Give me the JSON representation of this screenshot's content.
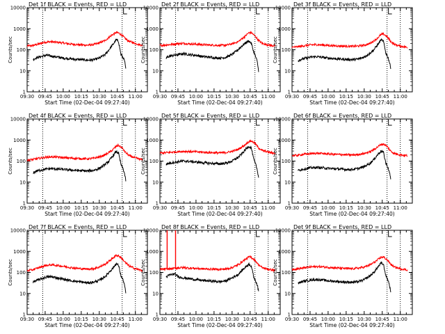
{
  "chart_data": {
    "type": "line",
    "y_scale": "log",
    "ylim": [
      1,
      10000
    ],
    "xlim": [
      "09:30",
      "11:10"
    ],
    "ylabel": "Counts/sec",
    "xlabel": "Start Time (02-Dec-04 09:27:40)",
    "x_tick_labels": [
      "09:30",
      "09:45",
      "10:00",
      "10:15",
      "10:30",
      "10:45",
      "11:00"
    ],
    "y_tick_labels": [
      "1",
      "10",
      "100",
      "1000",
      "10000"
    ],
    "series_colors": {
      "events": "#000000",
      "lld": "#ff0000"
    },
    "panels": [
      {
        "title": "Det 1f BLACK = Events, RED = LLD",
        "vlines": [
          "09:43",
          "10:49",
          "11:00"
        ],
        "lld": {
          "x": [
            "09:30",
            "09:35",
            "09:40",
            "09:45",
            "09:50",
            "09:55",
            "10:00",
            "10:05",
            "10:10",
            "10:15",
            "10:20",
            "10:25",
            "10:30",
            "10:35",
            "10:40",
            "10:44",
            "10:46",
            "10:49",
            "10:52",
            "10:55",
            "11:00",
            "11:06"
          ],
          "y": [
            150,
            160,
            190,
            230,
            240,
            225,
            210,
            190,
            180,
            170,
            165,
            175,
            210,
            280,
            480,
            650,
            630,
            480,
            320,
            250,
            200,
            160
          ]
        },
        "events": {
          "x": [
            "09:35",
            "09:38",
            "09:42",
            "09:46",
            "09:50",
            "09:55",
            "10:00",
            "10:05",
            "10:10",
            "10:15",
            "10:20",
            "10:25",
            "10:30",
            "10:35",
            "10:38",
            "10:42",
            "10:44",
            "10:46",
            "10:48",
            "10:50",
            "10:51",
            "10:52"
          ],
          "y": [
            35,
            42,
            48,
            55,
            50,
            45,
            40,
            38,
            35,
            34,
            32,
            33,
            40,
            60,
            100,
            200,
            300,
            250,
            60,
            40,
            30,
            12
          ]
        }
      },
      {
        "title": "Det 2f BLACK = Events, RED = LLD",
        "vlines": [
          "09:43",
          "10:49",
          "11:00"
        ],
        "lld": {
          "x": [
            "09:30",
            "09:35",
            "09:40",
            "09:45",
            "09:50",
            "09:55",
            "10:00",
            "10:05",
            "10:10",
            "10:15",
            "10:20",
            "10:25",
            "10:30",
            "10:35",
            "10:40",
            "10:44",
            "10:46",
            "10:49",
            "10:52",
            "10:55",
            "11:00",
            "11:06"
          ],
          "y": [
            160,
            170,
            180,
            195,
            200,
            190,
            185,
            175,
            170,
            165,
            160,
            165,
            190,
            240,
            400,
            650,
            650,
            450,
            280,
            200,
            170,
            150
          ]
        },
        "events": {
          "x": [
            "09:35",
            "09:38",
            "09:42",
            "09:46",
            "09:50",
            "09:55",
            "10:00",
            "10:05",
            "10:10",
            "10:15",
            "10:20",
            "10:25",
            "10:30",
            "10:35",
            "10:38",
            "10:42",
            "10:44",
            "10:46",
            "10:48",
            "10:50",
            "10:51",
            "10:52"
          ],
          "y": [
            40,
            50,
            55,
            60,
            65,
            58,
            55,
            48,
            45,
            42,
            40,
            44,
            60,
            100,
            150,
            230,
            260,
            200,
            80,
            40,
            25,
            10
          ]
        }
      },
      {
        "title": "Det 3f BLACK = Events, RED = LLD",
        "vlines": [
          "09:43",
          "10:49",
          "11:00"
        ],
        "lld": {
          "x": [
            "09:30",
            "09:35",
            "09:40",
            "09:45",
            "09:50",
            "09:55",
            "10:00",
            "10:05",
            "10:10",
            "10:15",
            "10:20",
            "10:25",
            "10:30",
            "10:35",
            "10:40",
            "10:44",
            "10:46",
            "10:49",
            "10:52",
            "10:55",
            "11:00",
            "11:06"
          ],
          "y": [
            130,
            140,
            155,
            170,
            175,
            170,
            160,
            155,
            150,
            148,
            145,
            150,
            165,
            200,
            320,
            520,
            560,
            420,
            250,
            180,
            150,
            130
          ]
        },
        "events": {
          "x": [
            "09:35",
            "09:38",
            "09:42",
            "09:46",
            "09:50",
            "09:55",
            "10:00",
            "10:05",
            "10:10",
            "10:15",
            "10:20",
            "10:25",
            "10:30",
            "10:35",
            "10:38",
            "10:42",
            "10:44",
            "10:46",
            "10:48",
            "10:50",
            "10:51",
            "10:52"
          ],
          "y": [
            30,
            36,
            40,
            45,
            47,
            44,
            40,
            38,
            36,
            35,
            34,
            36,
            45,
            70,
            100,
            200,
            300,
            250,
            70,
            40,
            25,
            14
          ]
        }
      },
      {
        "title": "Det 4f BLACK = Events, RED = LLD",
        "vlines": [
          "09:43",
          "10:49",
          "11:00"
        ],
        "lld": {
          "x": [
            "09:30",
            "09:35",
            "09:40",
            "09:45",
            "09:50",
            "09:55",
            "10:00",
            "10:05",
            "10:10",
            "10:15",
            "10:20",
            "10:25",
            "10:30",
            "10:35",
            "10:40",
            "10:44",
            "10:46",
            "10:49",
            "10:52",
            "10:55",
            "11:00",
            "11:06"
          ],
          "y": [
            110,
            120,
            135,
            150,
            160,
            155,
            145,
            140,
            135,
            130,
            128,
            135,
            155,
            200,
            300,
            500,
            560,
            420,
            250,
            180,
            140,
            115
          ]
        },
        "events": {
          "x": [
            "09:35",
            "09:38",
            "09:42",
            "09:46",
            "09:50",
            "09:55",
            "10:00",
            "10:05",
            "10:10",
            "10:15",
            "10:20",
            "10:25",
            "10:30",
            "10:35",
            "10:38",
            "10:42",
            "10:44",
            "10:46",
            "10:48",
            "10:50",
            "10:51",
            "10:52"
          ],
          "y": [
            28,
            34,
            38,
            42,
            44,
            42,
            40,
            38,
            36,
            35,
            34,
            36,
            45,
            70,
            100,
            200,
            280,
            240,
            70,
            40,
            25,
            12
          ]
        }
      },
      {
        "title": "Det 5f BLACK = Events, RED = LLD",
        "vlines": [
          "09:43",
          "10:49",
          "11:00"
        ],
        "lld": {
          "x": [
            "09:30",
            "09:35",
            "09:40",
            "09:45",
            "09:50",
            "09:55",
            "10:00",
            "10:05",
            "10:10",
            "10:15",
            "10:20",
            "10:25",
            "10:30",
            "10:35",
            "10:40",
            "10:44",
            "10:46",
            "10:49",
            "10:52",
            "10:55",
            "11:00",
            "11:06"
          ],
          "y": [
            240,
            250,
            265,
            280,
            290,
            285,
            275,
            265,
            255,
            250,
            245,
            255,
            290,
            360,
            550,
            850,
            900,
            700,
            420,
            320,
            270,
            230
          ]
        },
        "events": {
          "x": [
            "09:35",
            "09:38",
            "09:42",
            "09:46",
            "09:50",
            "09:55",
            "10:00",
            "10:05",
            "10:10",
            "10:15",
            "10:20",
            "10:25",
            "10:30",
            "10:35",
            "10:38",
            "10:42",
            "10:44",
            "10:46",
            "10:48",
            "10:50",
            "10:51",
            "10:52"
          ],
          "y": [
            70,
            80,
            88,
            95,
            100,
            96,
            90,
            85,
            80,
            76,
            74,
            80,
            100,
            150,
            220,
            400,
            500,
            420,
            120,
            60,
            35,
            18
          ]
        }
      },
      {
        "title": "Det 6f BLACK = Events, RED = LLD",
        "vlines": [
          "09:43",
          "10:49",
          "11:00"
        ],
        "lld": {
          "x": [
            "09:30",
            "09:35",
            "09:40",
            "09:45",
            "09:50",
            "09:55",
            "10:00",
            "10:05",
            "10:10",
            "10:15",
            "10:20",
            "10:25",
            "10:30",
            "10:35",
            "10:40",
            "10:44",
            "10:46",
            "10:49",
            "10:52",
            "10:55",
            "11:00",
            "11:06"
          ],
          "y": [
            180,
            190,
            210,
            225,
            235,
            230,
            220,
            210,
            205,
            200,
            195,
            205,
            230,
            280,
            420,
            620,
            650,
            500,
            300,
            230,
            200,
            180
          ]
        },
        "events": {
          "x": [
            "09:35",
            "09:38",
            "09:42",
            "09:46",
            "09:50",
            "09:55",
            "10:00",
            "10:05",
            "10:10",
            "10:15",
            "10:20",
            "10:25",
            "10:30",
            "10:35",
            "10:38",
            "10:42",
            "10:44",
            "10:46",
            "10:48",
            "10:50",
            "10:51",
            "10:52"
          ],
          "y": [
            35,
            40,
            44,
            48,
            50,
            48,
            45,
            43,
            42,
            40,
            40,
            44,
            55,
            80,
            120,
            230,
            300,
            260,
            80,
            45,
            28,
            15
          ]
        }
      },
      {
        "title": "Det 7f BLACK = Events, RED = LLD",
        "vlines": [
          "09:43",
          "10:49",
          "11:00"
        ],
        "lld": {
          "x": [
            "09:30",
            "09:35",
            "09:40",
            "09:45",
            "09:50",
            "09:55",
            "10:00",
            "10:05",
            "10:10",
            "10:15",
            "10:20",
            "10:25",
            "10:30",
            "10:35",
            "10:40",
            "10:44",
            "10:46",
            "10:49",
            "10:52",
            "10:55",
            "11:00",
            "11:06"
          ],
          "y": [
            120,
            135,
            170,
            210,
            230,
            215,
            195,
            175,
            160,
            150,
            145,
            150,
            180,
            250,
            420,
            650,
            620,
            450,
            280,
            200,
            150,
            120
          ]
        },
        "events": {
          "x": [
            "09:35",
            "09:38",
            "09:42",
            "09:46",
            "09:50",
            "09:55",
            "10:00",
            "10:05",
            "10:10",
            "10:15",
            "10:20",
            "10:25",
            "10:30",
            "10:35",
            "10:38",
            "10:42",
            "10:44",
            "10:46",
            "10:48",
            "10:50",
            "10:51",
            "10:52"
          ],
          "y": [
            35,
            42,
            50,
            60,
            62,
            55,
            48,
            42,
            38,
            35,
            32,
            34,
            42,
            65,
            100,
            180,
            260,
            220,
            70,
            40,
            25,
            10
          ]
        }
      },
      {
        "title": "Det 8f BLACK = Events, RED = LLD",
        "vlines": [
          "09:43",
          "10:49",
          "11:00"
        ],
        "spike": {
          "x0": "09:36",
          "x1": "09:43",
          "y": 10000
        },
        "lld": {
          "x": [
            "09:30",
            "09:35",
            "09:40",
            "09:45",
            "09:50",
            "09:55",
            "10:00",
            "10:05",
            "10:10",
            "10:15",
            "10:20",
            "10:25",
            "10:30",
            "10:35",
            "10:40",
            "10:44",
            "10:46",
            "10:49",
            "10:52",
            "10:55",
            "11:00",
            "11:06"
          ],
          "y": [
            140,
            145,
            150,
            165,
            170,
            160,
            155,
            148,
            145,
            142,
            140,
            145,
            170,
            230,
            380,
            550,
            520,
            380,
            230,
            170,
            140,
            125
          ]
        },
        "events": {
          "x": [
            "09:35",
            "09:38",
            "09:42",
            "09:46",
            "09:50",
            "09:55",
            "10:00",
            "10:05",
            "10:10",
            "10:15",
            "10:20",
            "10:25",
            "10:30",
            "10:35",
            "10:38",
            "10:42",
            "10:44",
            "10:46",
            "10:48",
            "10:50",
            "10:51",
            "10:52"
          ],
          "y": [
            60,
            75,
            85,
            60,
            55,
            50,
            45,
            42,
            40,
            38,
            36,
            40,
            55,
            80,
            120,
            200,
            250,
            200,
            60,
            35,
            25,
            12
          ]
        }
      },
      {
        "title": "Det 9f BLACK = Events, RED = LLD",
        "vlines": [
          "09:43",
          "10:49",
          "11:00"
        ],
        "lld": {
          "x": [
            "09:30",
            "09:35",
            "09:40",
            "09:45",
            "09:50",
            "09:55",
            "10:00",
            "10:05",
            "10:10",
            "10:15",
            "10:20",
            "10:25",
            "10:30",
            "10:35",
            "10:40",
            "10:44",
            "10:46",
            "10:49",
            "10:52",
            "10:55",
            "11:00",
            "11:06"
          ],
          "y": [
            140,
            150,
            165,
            180,
            190,
            185,
            175,
            165,
            160,
            155,
            150,
            160,
            180,
            230,
            350,
            520,
            540,
            400,
            250,
            180,
            150,
            130
          ]
        },
        "events": {
          "x": [
            "09:35",
            "09:38",
            "09:42",
            "09:46",
            "09:50",
            "09:55",
            "10:00",
            "10:05",
            "10:10",
            "10:15",
            "10:20",
            "10:25",
            "10:30",
            "10:35",
            "10:38",
            "10:42",
            "10:44",
            "10:46",
            "10:48",
            "10:50",
            "10:51",
            "10:52"
          ],
          "y": [
            30,
            36,
            40,
            44,
            46,
            44,
            40,
            38,
            36,
            35,
            34,
            36,
            45,
            70,
            100,
            200,
            280,
            240,
            70,
            40,
            25,
            13
          ]
        }
      }
    ]
  }
}
